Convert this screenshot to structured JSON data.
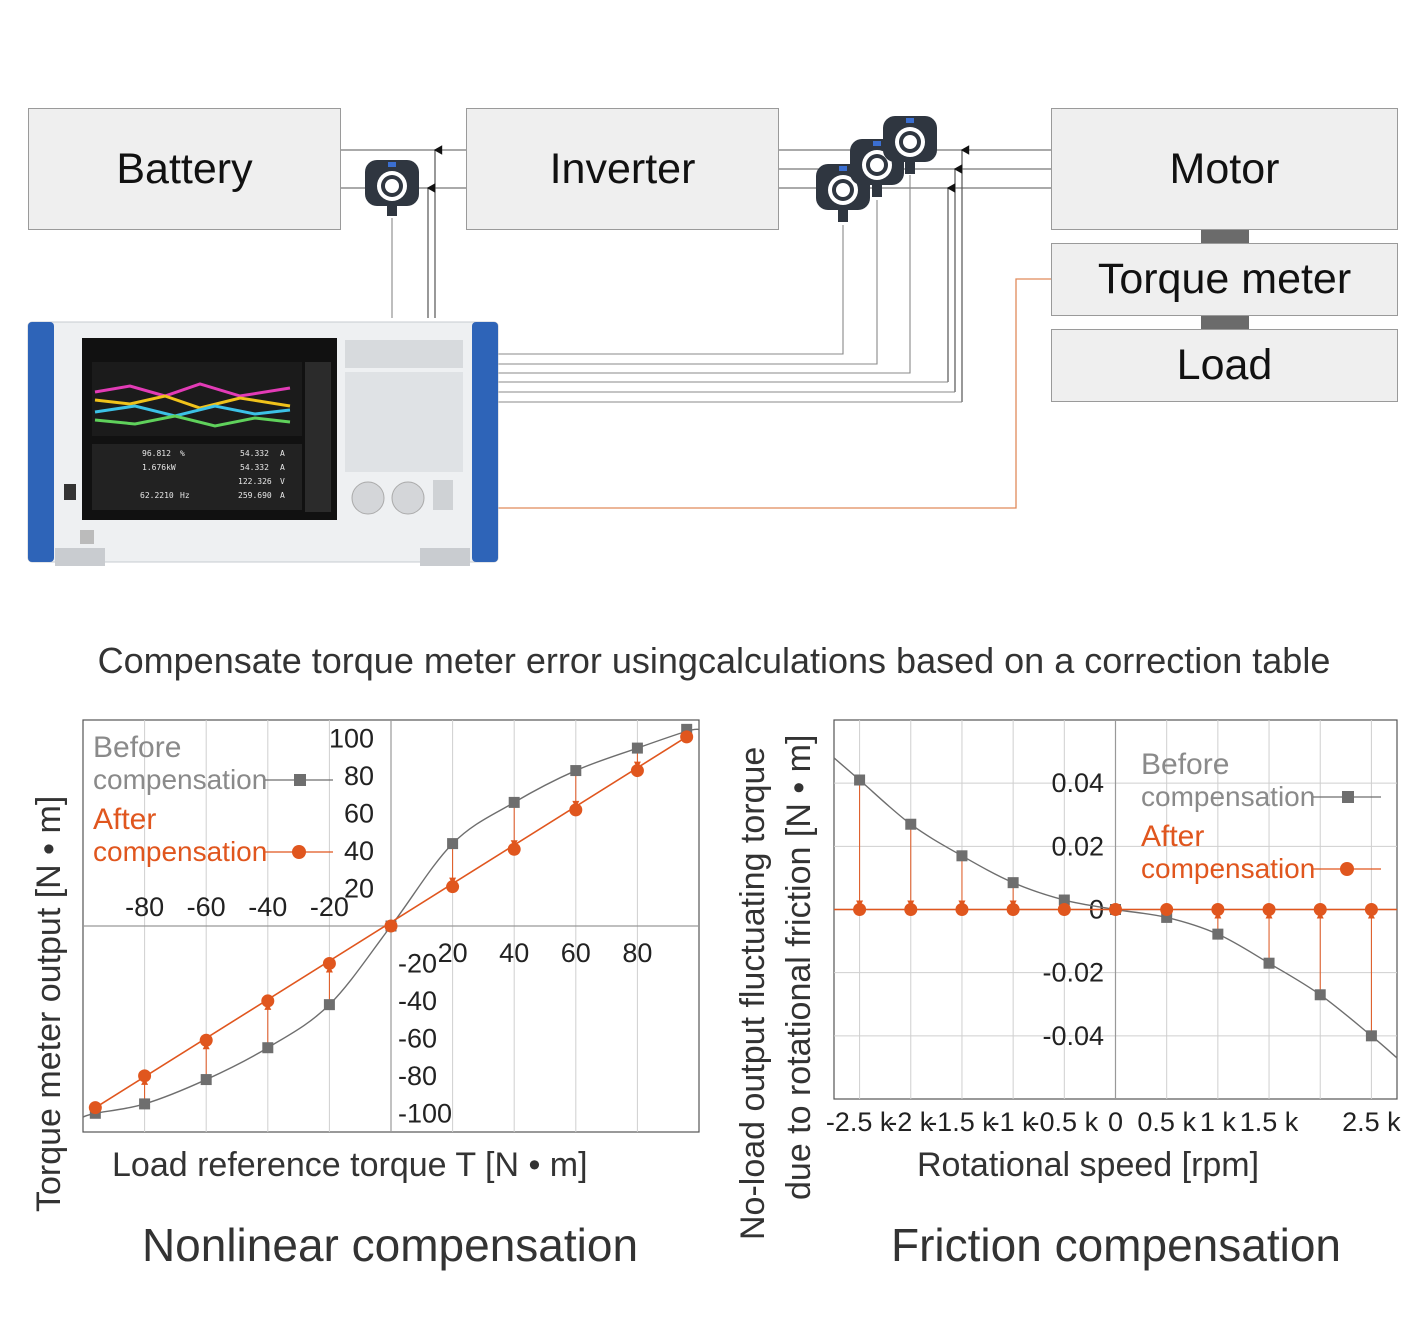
{
  "diagram": {
    "battery_label": "Battery",
    "inverter_label": "Inverter",
    "motor_label": "Motor",
    "torque_meter_label": "Torque meter",
    "load_label": "Load"
  },
  "caption": "Compensate torque meter error usingcalculations based on a correction table",
  "chart_data": [
    {
      "type": "line",
      "title": "Nonlinear compensation",
      "xlabel": "Load reference torque T [N • m]",
      "ylabel": "Torque meter output [N • m]",
      "xlim": [
        -100,
        100
      ],
      "ylim": [
        -110,
        110
      ],
      "x_ticks": [
        "-80",
        "-60",
        "-40",
        "-20",
        "20",
        "40",
        "60",
        "80"
      ],
      "y_ticks": [
        "100",
        "80",
        "60",
        "40",
        "20",
        "-20",
        "-40",
        "-60",
        "-80",
        "-100"
      ],
      "series": [
        {
          "name": "Before compensation",
          "color": "#6e6e6e",
          "marker": "square",
          "x": [
            -96,
            -80,
            -60,
            -40,
            -20,
            0,
            20,
            40,
            60,
            80,
            96
          ],
          "y": [
            -100,
            -95,
            -82,
            -65,
            -42,
            0,
            44,
            66,
            83,
            95,
            105
          ]
        },
        {
          "name": "After compensation",
          "color": "#e0561e",
          "marker": "circle",
          "x": [
            -96,
            -80,
            -60,
            -40,
            -20,
            0,
            20,
            40,
            60,
            80,
            96
          ],
          "y": [
            -97,
            -80,
            -61,
            -40,
            -20,
            0,
            21,
            41,
            62,
            83,
            101
          ]
        }
      ]
    },
    {
      "type": "line",
      "title": "Friction compensation",
      "xlabel": "Rotational speed [rpm]",
      "ylabel": "No-load output fluctuating torque due to rotational friction [N • m]",
      "xlim": [
        -2.75,
        2.75
      ],
      "ylim": [
        -0.06,
        0.06
      ],
      "x_ticks": [
        "-2.5 k",
        "-2 k",
        "-1.5 k",
        "-1 k",
        "-0.5 k",
        "0",
        "0.5 k",
        "1 k",
        "1.5 k",
        "2.5 k"
      ],
      "y_ticks": [
        "0.04",
        "0.02",
        "0",
        "-0.02",
        "-0.04"
      ],
      "series": [
        {
          "name": "Before compensation",
          "color": "#6e6e6e",
          "marker": "square",
          "x": [
            -2.5,
            -2,
            -1.5,
            -1,
            -0.5,
            0,
            0.5,
            1,
            1.5,
            2,
            2.5
          ],
          "y": [
            0.041,
            0.027,
            0.017,
            0.0085,
            0.003,
            0,
            -0.0025,
            -0.0078,
            -0.017,
            -0.027,
            -0.04
          ]
        },
        {
          "name": "After compensation",
          "color": "#e0561e",
          "marker": "circle",
          "x": [
            -2.5,
            -2,
            -1.5,
            -1,
            -0.5,
            0,
            0.5,
            1,
            1.5,
            2,
            2.5
          ],
          "y": [
            0,
            0,
            0,
            0,
            0,
            0,
            0,
            0,
            0,
            0,
            0
          ]
        }
      ]
    }
  ],
  "legend": {
    "before_1": "Before",
    "before_2": "compensation",
    "after_1": "After",
    "after_2": "compensation"
  },
  "colors": {
    "before": "#6e6e6e",
    "after": "#e0561e"
  },
  "analyzer_screen": {
    "readouts": [
      "96.812",
      "%",
      "54.332",
      "A",
      "1.676kW",
      "54.332",
      "A",
      "122.326",
      "V",
      "62.2210",
      "Hz",
      "259.690",
      "A"
    ]
  }
}
